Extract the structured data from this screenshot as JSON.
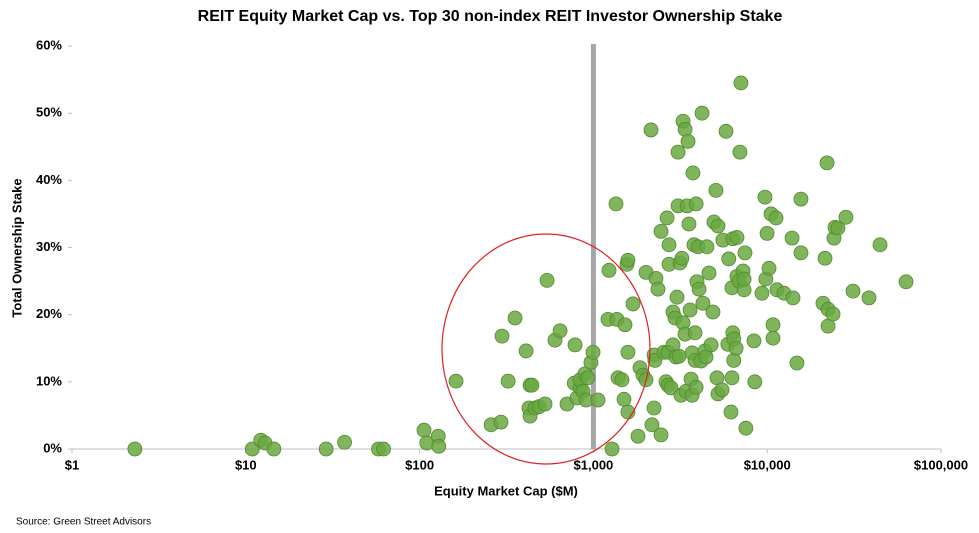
{
  "chart_data": {
    "type": "scatter",
    "title": "REIT Equity Market Cap vs. Top 30 non-index REIT Investor Ownership Stake",
    "x_label": "Equity Market Cap ($M)",
    "y_label": "Total Ownership Stake",
    "source": "Source:  Green Street Advisors",
    "xscale": "log",
    "color": "#6aa842",
    "vline": 1000,
    "xlim": [
      1,
      100000
    ],
    "xticks": [
      {
        "value": 1,
        "label": "$1"
      },
      {
        "value": 10,
        "label": "$10"
      },
      {
        "value": 100,
        "label": "$100"
      },
      {
        "value": 1000,
        "label": "$1,000"
      },
      {
        "value": 10000,
        "label": "$10,000"
      },
      {
        "value": 100000,
        "label": "$100,000"
      }
    ],
    "ylim": [
      0,
      60
    ],
    "yticks": [
      {
        "value": 0,
        "label": "0%"
      },
      {
        "value": 10,
        "label": "10%"
      },
      {
        "value": 20,
        "label": "20%"
      },
      {
        "value": 30,
        "label": "30%"
      },
      {
        "value": 40,
        "label": "40%"
      },
      {
        "value": 50,
        "label": "50%"
      },
      {
        "value": 60,
        "label": "60%"
      }
    ],
    "x": [
      2.3,
      10.9,
      12.2,
      12.9,
      14.5,
      29,
      37,
      58,
      62,
      106,
      110,
      128,
      129,
      162,
      258,
      294,
      298,
      323,
      354,
      410,
      426,
      432,
      443,
      432,
      461,
      487,
      527,
      541,
      601,
      643,
      705,
      784,
      776,
      805,
      838,
      838,
      871,
      895,
      907,
      930,
      968,
      995,
      1063,
      1230,
      1213,
      1280,
      1349,
      1366,
      1386,
      1460,
      1500,
      1520,
      1560,
      1580,
      1580,
      1580,
      1690,
      1806,
      1854,
      1929,
      2008,
      2008,
      2145,
      2172,
      2232,
      2232,
      2260,
      2290,
      2354,
      2450,
      2450,
      2547,
      2618,
      2654,
      2689,
      2689,
      2723,
      2723,
      2796,
      2871,
      2871,
      2951,
      2988,
      3027,
      3069,
      3069,
      3110,
      3150,
      3190,
      3230,
      3279,
      3279,
      3367,
      3367,
      3410,
      3459,
      3504,
      3548,
      3600,
      3647,
      3700,
      3700,
      3740,
      3790,
      3846,
      3846,
      3900,
      3900,
      3945,
      4000,
      4054,
      4159,
      4217,
      4270,
      4385,
      4446,
      4500,
      4624,
      4750,
      4875,
      4940,
      5070,
      5140,
      5210,
      5210,
      5495,
      5560,
      5795,
      5940,
      6010,
      6190,
      6270,
      6270,
      6340,
      6340,
      6420,
      6420,
      6620,
      6700,
      6700,
      6890,
      6970,
      7060,
      7260,
      7360,
      7360,
      7450,
      7540,
      8390,
      8490,
      9330,
      9710,
      9820,
      9980,
      10240,
      10520,
      10800,
      10800,
      11240,
      11380,
      12490,
      13900,
      14070,
      14830,
      15640,
      15640,
      20940,
      21510,
      22090,
      22390,
      22390,
      23920,
      24220,
      24560,
      25530,
      28380,
      31170,
      38530,
      44580,
      62950
    ],
    "values": [
      0,
      0,
      1.3,
      0.9,
      0,
      0,
      1.0,
      0,
      0,
      2.8,
      0.9,
      1.9,
      0.4,
      10.1,
      3.6,
      4.0,
      16.8,
      10.1,
      19.5,
      14.6,
      6.1,
      9.5,
      9.5,
      4.9,
      6.1,
      6.3,
      6.7,
      25.1,
      16.2,
      17.6,
      6.7,
      15.5,
      9.8,
      7.6,
      9.1,
      10.3,
      8.6,
      11.2,
      7.3,
      10.6,
      12.9,
      14.4,
      7.3,
      26.6,
      19.3,
      0,
      36.5,
      19.3,
      10.6,
      10.3,
      7.4,
      18.5,
      27.5,
      5.5,
      28.1,
      14.4,
      21.6,
      1.9,
      12.1,
      11.0,
      10.3,
      26.3,
      47.5,
      3.6,
      6.1,
      14.0,
      13.2,
      25.4,
      23.8,
      32.4,
      2.1,
      14.4,
      10.0,
      34.4,
      14.4,
      9.5,
      30.4,
      27.5,
      9.1,
      15.5,
      20.4,
      19.5,
      13.7,
      22.6,
      44.2,
      36.2,
      13.8,
      27.7,
      8.0,
      28.4,
      48.8,
      18.8,
      47.6,
      17.1,
      8.6,
      36.2,
      45.8,
      33.5,
      20.7,
      10.4,
      8.0,
      14.3,
      41.1,
      30.4,
      17.3,
      13.2,
      36.5,
      9.2,
      24.9,
      30.1,
      23.8,
      13.1,
      50.0,
      21.7,
      14.6,
      13.7,
      30.1,
      26.2,
      15.5,
      20.4,
      33.8,
      38.5,
      10.6,
      8.2,
      33.2,
      8.8,
      31.1,
      47.3,
      15.6,
      28.3,
      5.5,
      10.6,
      24.0,
      17.3,
      31.3,
      13.2,
      16.4,
      15.0,
      25.7,
      31.5,
      25.0,
      44.2,
      54.5,
      26.5,
      23.7,
      25.3,
      29.2,
      3.1,
      16.1,
      10.0,
      23.2,
      37.5,
      25.3,
      32.1,
      26.9,
      35.0,
      18.5,
      16.5,
      34.4,
      23.7,
      23.2,
      31.4,
      22.5,
      12.8,
      37.2,
      29.2,
      21.7,
      28.4,
      42.6,
      18.3,
      20.8,
      20.1,
      31.4,
      33.0,
      32.9,
      34.5,
      23.5,
      22.5,
      30.4,
      24.9
    ]
  }
}
